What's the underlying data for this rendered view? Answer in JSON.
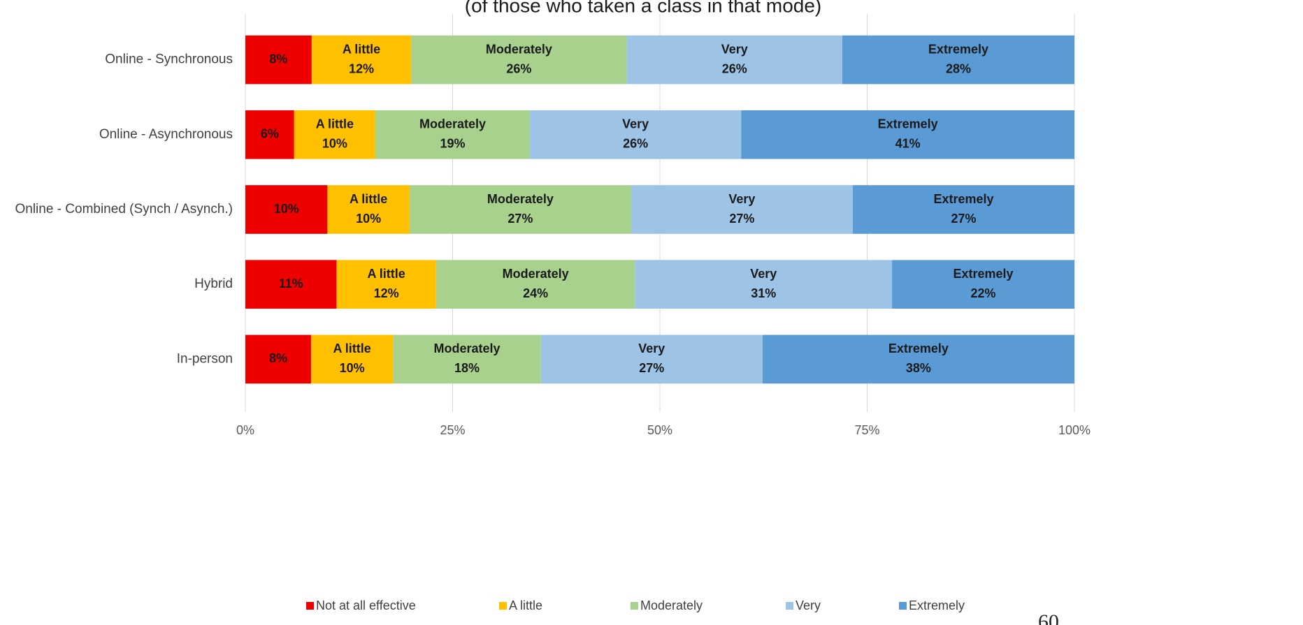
{
  "chart_data": {
    "type": "bar",
    "orientation": "horizontal",
    "stacked": "percent",
    "subtitle": "(of those who taken a class in that mode)",
    "page_number": "60",
    "categories": [
      "Online - Synchronous",
      "Online - Asynchronous",
      "Online - Combined (Synch / Asynch.)",
      "Hybrid",
      "In-person"
    ],
    "series": [
      {
        "name": "Not at all effective",
        "color": "#ee0000",
        "values": [
          8,
          6,
          10,
          11,
          8
        ],
        "value_labels": [
          "8%",
          "6%",
          "10%",
          "11%",
          "8%"
        ],
        "name_in_bar": false
      },
      {
        "name": "A little",
        "color": "#ffc000",
        "values": [
          12,
          10,
          10,
          12,
          10
        ],
        "value_labels": [
          "12%",
          "10%",
          "10%",
          "12%",
          "10%"
        ],
        "name_in_bar": true
      },
      {
        "name": "Moderately",
        "color": "#a9d18e",
        "values": [
          26,
          19,
          27,
          24,
          18
        ],
        "value_labels": [
          "26%",
          "19%",
          "27%",
          "24%",
          "18%"
        ],
        "name_in_bar": true
      },
      {
        "name": "Very",
        "color": "#9dc3e6",
        "values": [
          26,
          26,
          27,
          31,
          27
        ],
        "value_labels": [
          "26%",
          "26%",
          "27%",
          "31%",
          "27%"
        ],
        "name_in_bar": true
      },
      {
        "name": "Extremely",
        "color": "#5b9bd5",
        "values": [
          28,
          41,
          27,
          22,
          38
        ],
        "value_labels": [
          "28%",
          "41%",
          "27%",
          "22%",
          "38%"
        ],
        "name_in_bar": true
      }
    ],
    "xlim": [
      0,
      100
    ],
    "xticks": [
      {
        "value": 0,
        "label": "0%"
      },
      {
        "value": 25,
        "label": "25%"
      },
      {
        "value": 50,
        "label": "50%"
      },
      {
        "value": 75,
        "label": "75%"
      },
      {
        "value": 100,
        "label": "100%"
      }
    ],
    "grid": true,
    "legend": "bottom"
  }
}
